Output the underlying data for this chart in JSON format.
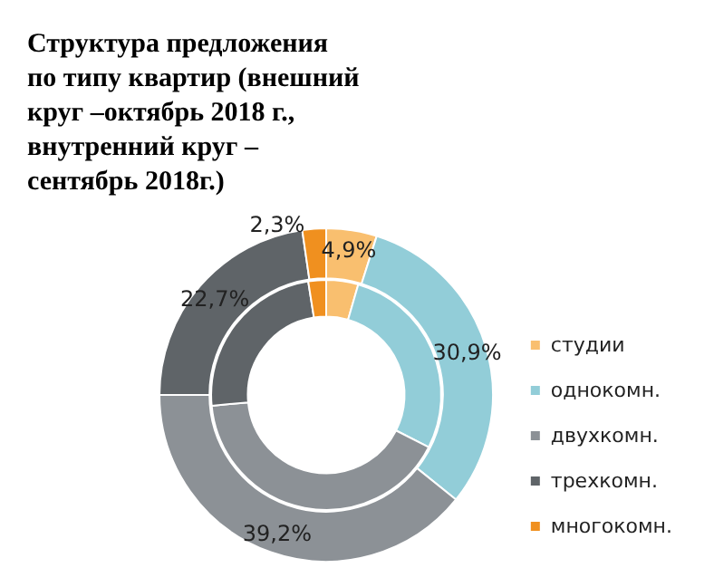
{
  "chart_data": {
    "type": "donut",
    "title": "Структура предложения по типу квартир (внешний круг –октябрь 2018 г., внутренний круг – сентябрь 2018г.)",
    "categories": [
      "студии",
      "однокомн.",
      "двухкомн.",
      "трехкомн.",
      "многокомн."
    ],
    "colors": [
      "#f9bf6f",
      "#92cdd8",
      "#8c9196",
      "#5f6468",
      "#f0901f"
    ],
    "series": [
      {
        "values": [
          4.9,
          30.9,
          39.2,
          22.7,
          2.3
        ],
        "value_labels": [
          "4,9%",
          "30,9%",
          "39,2%",
          "22,7%",
          "2,3%"
        ]
      },
      {
        "values": [
          4.5,
          28,
          41,
          24,
          2.5
        ]
      }
    ],
    "legend": "right"
  }
}
